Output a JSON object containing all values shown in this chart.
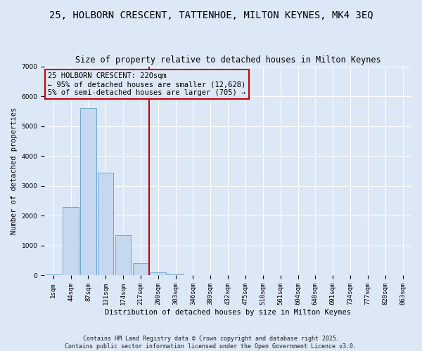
{
  "title": "25, HOLBORN CRESCENT, TATTENHOE, MILTON KEYNES, MK4 3EQ",
  "subtitle": "Size of property relative to detached houses in Milton Keynes",
  "xlabel": "Distribution of detached houses by size in Milton Keynes",
  "ylabel": "Number of detached properties",
  "categories": [
    "1sqm",
    "44sqm",
    "87sqm",
    "131sqm",
    "174sqm",
    "217sqm",
    "260sqm",
    "303sqm",
    "346sqm",
    "389sqm",
    "432sqm",
    "475sqm",
    "518sqm",
    "561sqm",
    "604sqm",
    "648sqm",
    "691sqm",
    "734sqm",
    "777sqm",
    "820sqm",
    "863sqm"
  ],
  "values": [
    30,
    2300,
    5600,
    3450,
    1350,
    400,
    110,
    50,
    10,
    0,
    0,
    0,
    0,
    0,
    0,
    0,
    0,
    0,
    0,
    0,
    0
  ],
  "bar_color": "#c5d8f0",
  "bar_edge_color": "#6aaad4",
  "vline_x": 5.5,
  "vline_color": "#cc0000",
  "annotation_text": "25 HOLBORN CRESCENT: 220sqm\n← 95% of detached houses are smaller (12,628)\n5% of semi-detached houses are larger (705) →",
  "annotation_box_color": "#cc0000",
  "background_color": "#dce8f5",
  "ylim": [
    0,
    7000
  ],
  "yticks": [
    0,
    1000,
    2000,
    3000,
    4000,
    5000,
    6000,
    7000
  ],
  "footer": "Contains HM Land Registry data © Crown copyright and database right 2025.\nContains public sector information licensed under the Open Government Licence v3.0.",
  "title_fontsize": 10,
  "subtitle_fontsize": 8.5,
  "label_fontsize": 7.5,
  "tick_fontsize": 6.5,
  "annot_fontsize": 7.5
}
